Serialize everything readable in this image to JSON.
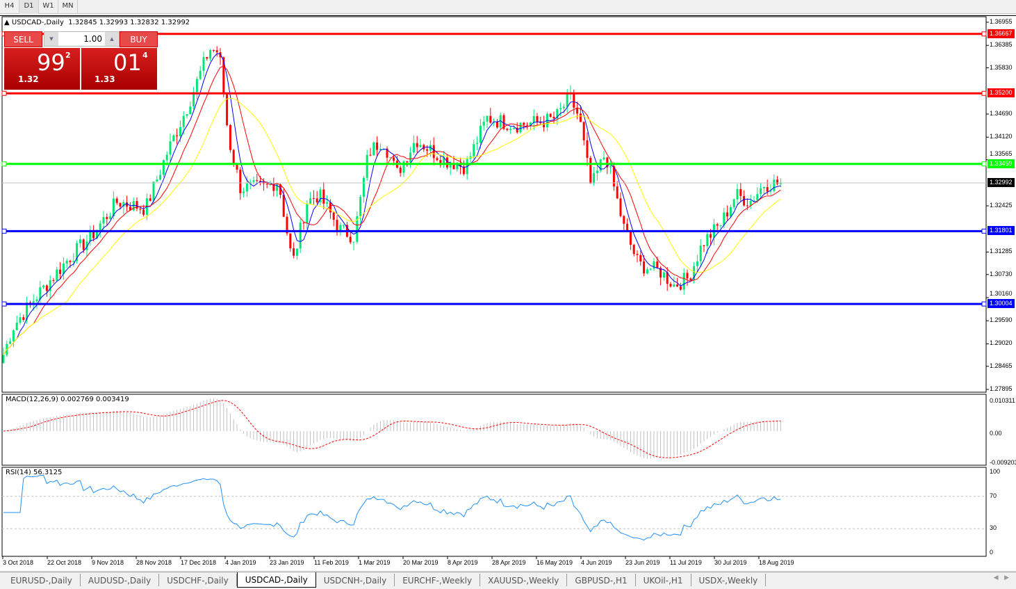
{
  "timeframes": [
    "H4",
    "D1",
    "W1",
    "MN"
  ],
  "active_timeframe": "D1",
  "chart": {
    "title": "USDCAD-,Daily",
    "ohlc": "1.32845 1.32993 1.32832 1.32992",
    "price_axis": [
      "1.36955",
      "1.36385",
      "1.35830",
      "1.34690",
      "1.34120",
      "1.33565",
      "1.32425",
      "1.31285",
      "1.30730",
      "1.30160",
      "1.29590",
      "1.29020",
      "1.28465",
      "1.27895"
    ],
    "current_price": "1.32992",
    "levels": [
      {
        "price": "1.36667",
        "color": "#ff0000"
      },
      {
        "price": "1.35200",
        "color": "#ff0000"
      },
      {
        "price": "1.33459",
        "color": "#00ff00"
      },
      {
        "price": "1.31801",
        "color": "#0000ff"
      },
      {
        "price": "1.30004",
        "color": "#0000ff"
      }
    ],
    "date_axis": [
      "3 Oct 2018",
      "22 Oct 2018",
      "9 Nov 2018",
      "28 Nov 2018",
      "17 Dec 2018",
      "4 Jan 2019",
      "23 Jan 2019",
      "11 Feb 2019",
      "1 Mar 2019",
      "20 Mar 2019",
      "8 Apr 2019",
      "28 Apr 2019",
      "16 May 2019",
      "4 Jun 2019",
      "23 Jun 2019",
      "11 Jul 2019",
      "30 Jul 2019",
      "18 Aug 2019"
    ],
    "close_path": [
      [
        "2018-10-03",
        1.2875
      ],
      [
        "2018-10-07",
        1.2944
      ],
      [
        "2018-10-16",
        1.3013
      ],
      [
        "2018-10-31",
        1.3116
      ],
      [
        "2018-11-09",
        1.3167
      ],
      [
        "2018-11-20",
        1.3253
      ],
      [
        "2018-12-02",
        1.3236
      ],
      [
        "2018-12-11",
        1.3373
      ],
      [
        "2018-12-20",
        1.3493
      ],
      [
        "2018-12-29",
        1.363
      ],
      [
        "2019-01-02",
        1.3622
      ],
      [
        "2019-01-06",
        1.3407
      ],
      [
        "2019-01-11",
        1.3287
      ],
      [
        "2019-01-21",
        1.3287
      ],
      [
        "2019-01-27",
        1.3304
      ],
      [
        "2019-02-02",
        1.3098
      ],
      [
        "2019-02-08",
        1.3253
      ],
      [
        "2019-02-13",
        1.327
      ],
      [
        "2019-02-22",
        1.3184
      ],
      [
        "2019-02-28",
        1.3167
      ],
      [
        "2019-03-06",
        1.3373
      ],
      [
        "2019-03-12",
        1.3407
      ],
      [
        "2019-03-18",
        1.3322
      ],
      [
        "2019-03-26",
        1.3407
      ],
      [
        "2019-04-07",
        1.3356
      ],
      [
        "2019-04-16",
        1.3339
      ],
      [
        "2019-04-25",
        1.3459
      ],
      [
        "2019-05-07",
        1.3442
      ],
      [
        "2019-05-18",
        1.345
      ],
      [
        "2019-05-24",
        1.3459
      ],
      [
        "2019-05-30",
        1.351
      ],
      [
        "2019-06-03",
        1.3459
      ],
      [
        "2019-06-08",
        1.3287
      ],
      [
        "2019-06-14",
        1.3373
      ],
      [
        "2019-06-22",
        1.3184
      ],
      [
        "2019-06-28",
        1.3098
      ],
      [
        "2019-07-07",
        1.3081
      ],
      [
        "2019-07-13",
        1.3047
      ],
      [
        "2019-07-19",
        1.3064
      ],
      [
        "2019-07-25",
        1.315
      ],
      [
        "2019-08-02",
        1.3201
      ],
      [
        "2019-08-08",
        1.327
      ],
      [
        "2019-08-14",
        1.3253
      ],
      [
        "2019-08-20",
        1.3296
      ],
      [
        "2019-08-28",
        1.3299
      ]
    ],
    "colors": {
      "bull": "#00e676",
      "bear": "#ff0000",
      "ma_fast": "#0000ff",
      "ma_mid": "#ff0000",
      "ma_slow": "#ffff00"
    }
  },
  "trade": {
    "sell_label": "SELL",
    "buy_label": "BUY",
    "lot": "1.00",
    "sell_big": "1.32",
    "sell_main": "99",
    "sell_sup": "2",
    "buy_big": "1.33",
    "buy_main": "01",
    "buy_sup": "4"
  },
  "macd": {
    "label": "MACD(12,26,9) 0.002769 0.003419",
    "axis": [
      "0.010311",
      "0.00",
      "-0.009203"
    ]
  },
  "rsi": {
    "label": "RSI(14) 56.3125",
    "axis": [
      "100",
      "70",
      "30",
      "0"
    ]
  },
  "tabs": [
    "EURUSD-,Daily",
    "AUDUSD-,Daily",
    "USDCHF-,Daily",
    "USDCAD-,Daily",
    "USDCNH-,Daily",
    "EURCHF-,Weekly",
    "XAUUSD-,Weekly",
    "GBPUSD-,H1",
    "UKOil-,H1",
    "USDX-,Weekly"
  ],
  "active_tab": "USDCAD-,Daily"
}
